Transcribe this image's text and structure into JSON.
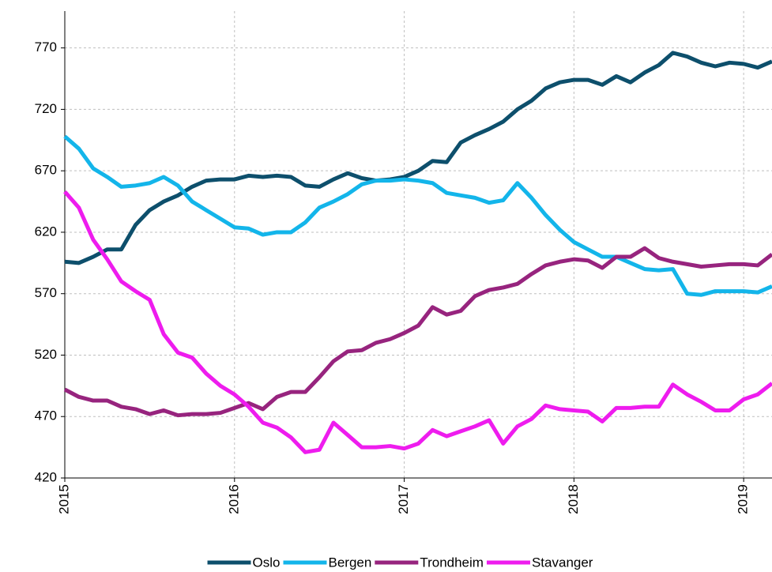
{
  "chart_data": {
    "type": "line",
    "x": [
      2015,
      2015.083,
      2015.167,
      2015.25,
      2015.333,
      2015.417,
      2015.5,
      2015.583,
      2015.667,
      2015.75,
      2015.833,
      2015.917,
      2016,
      2016.083,
      2016.167,
      2016.25,
      2016.333,
      2016.417,
      2016.5,
      2016.583,
      2016.667,
      2016.75,
      2016.833,
      2016.917,
      2017,
      2017.083,
      2017.167,
      2017.25,
      2017.333,
      2017.417,
      2017.5,
      2017.583,
      2017.667,
      2017.75,
      2017.833,
      2017.917,
      2018,
      2018.083,
      2018.167,
      2018.25,
      2018.333,
      2018.417,
      2018.5,
      2018.583,
      2018.667,
      2018.75,
      2018.833,
      2018.917,
      2019,
      2019.083,
      2019.167
    ],
    "series": [
      {
        "name": "Oslo",
        "color": "#0d4f6c",
        "values": [
          596,
          595,
          600,
          606,
          606,
          626,
          638,
          645,
          650,
          657,
          662,
          663,
          663,
          666,
          665,
          666,
          665,
          658,
          657,
          663,
          668,
          664,
          662,
          663,
          665,
          670,
          678,
          677,
          693,
          699,
          704,
          710,
          720,
          727,
          737,
          742,
          744,
          744,
          740,
          747,
          742,
          750,
          756,
          766,
          763,
          758,
          755,
          758,
          757,
          754,
          759
        ]
      },
      {
        "name": "Bergen",
        "color": "#13b5ea",
        "values": [
          698,
          688,
          672,
          665,
          657,
          658,
          660,
          665,
          658,
          645,
          638,
          631,
          624,
          623,
          618,
          620,
          620,
          628,
          640,
          645,
          651,
          659,
          662,
          662,
          663,
          662,
          660,
          652,
          650,
          648,
          644,
          646,
          660,
          648,
          634,
          622,
          612,
          606,
          600,
          600,
          595,
          590,
          589,
          590,
          570,
          569,
          572,
          572,
          572,
          571,
          576
        ]
      },
      {
        "name": "Trondheim",
        "color": "#97247e",
        "values": [
          492,
          486,
          483,
          483,
          478,
          476,
          472,
          475,
          471,
          472,
          472,
          473,
          477,
          481,
          476,
          486,
          490,
          490,
          502,
          515,
          523,
          524,
          530,
          533,
          538,
          544,
          559,
          553,
          556,
          568,
          573,
          575,
          578,
          586,
          593,
          596,
          598,
          597,
          591,
          600,
          600,
          607,
          599,
          596,
          594,
          592,
          593,
          594,
          594,
          593,
          602
        ]
      },
      {
        "name": "Stavanger",
        "color": "#ee1cee",
        "values": [
          653,
          640,
          614,
          598,
          580,
          572,
          565,
          537,
          522,
          518,
          505,
          495,
          488,
          478,
          465,
          461,
          453,
          441,
          443,
          465,
          455,
          445,
          445,
          446,
          444,
          448,
          459,
          454,
          458,
          462,
          467,
          448,
          462,
          468,
          479,
          476,
          475,
          474,
          466,
          477,
          477,
          478,
          478,
          496,
          488,
          482,
          475,
          475,
          484,
          488,
          497
        ]
      }
    ],
    "xlim": [
      2015,
      2019.167
    ],
    "xticks": [
      2015,
      2016,
      2017,
      2018,
      2019
    ],
    "ylim": [
      420,
      800
    ],
    "yticks": [
      420,
      470,
      520,
      570,
      620,
      670,
      720,
      770
    ],
    "grid": true,
    "legend": "bottom"
  }
}
